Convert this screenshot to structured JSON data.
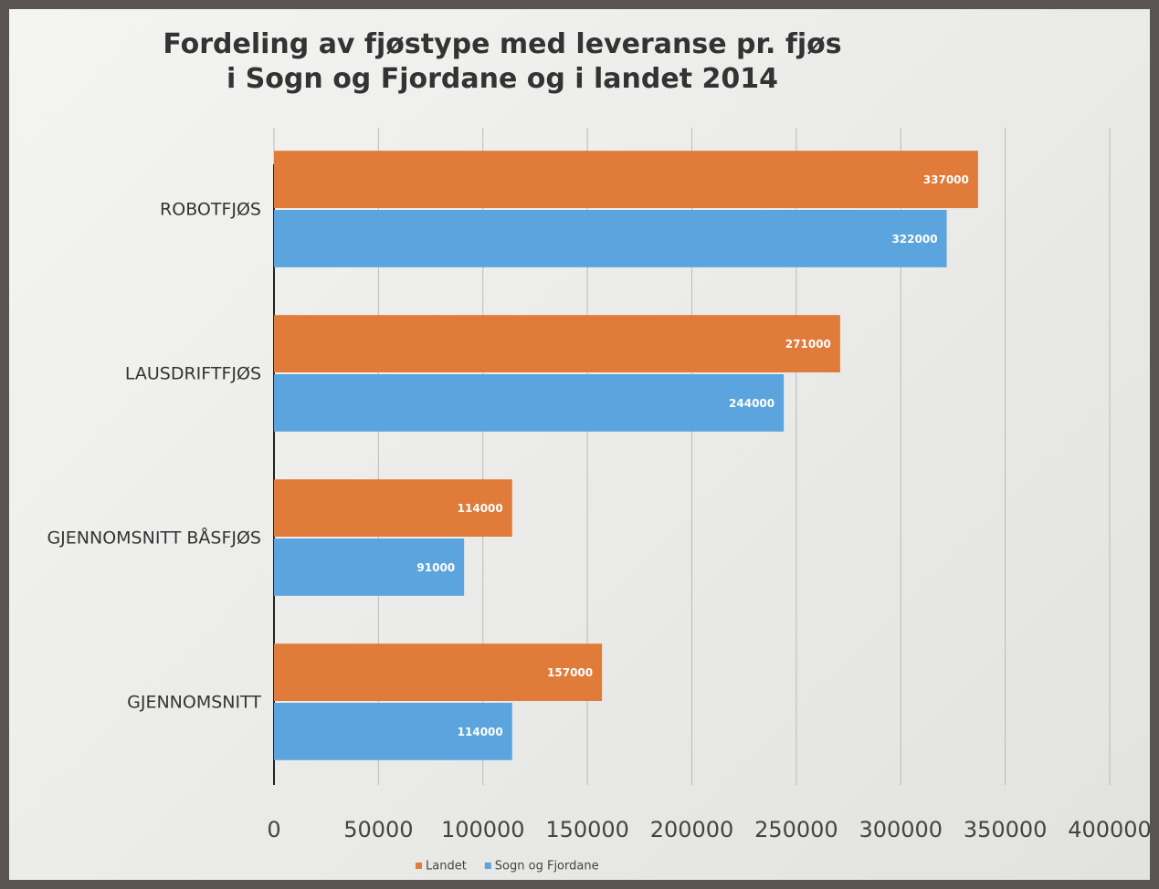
{
  "chart_data": {
    "type": "hbar",
    "title": "Fordeling av fjøstype med leveranse pr. fjøs i Sogn og Fjordane og i landet 2014",
    "categories": [
      "ROBOTFJØS",
      "LAUSDRIFTFJØS",
      "GJENNOMSNITT BÅSFJØS",
      "GJENNOMSNITT"
    ],
    "series": [
      {
        "name": "Landet",
        "color": "#e07b39",
        "values": [
          337000,
          271000,
          114000,
          157000
        ]
      },
      {
        "name": "Sogn og Fjordane",
        "color": "#5ba4dd",
        "values": [
          322000,
          244000,
          91000,
          114000
        ]
      }
    ],
    "xlim": [
      0,
      400000
    ],
    "xticks": [
      0,
      50000,
      100000,
      150000,
      200000,
      250000,
      300000,
      350000,
      400000
    ],
    "grid": true,
    "legend": "bottom"
  }
}
